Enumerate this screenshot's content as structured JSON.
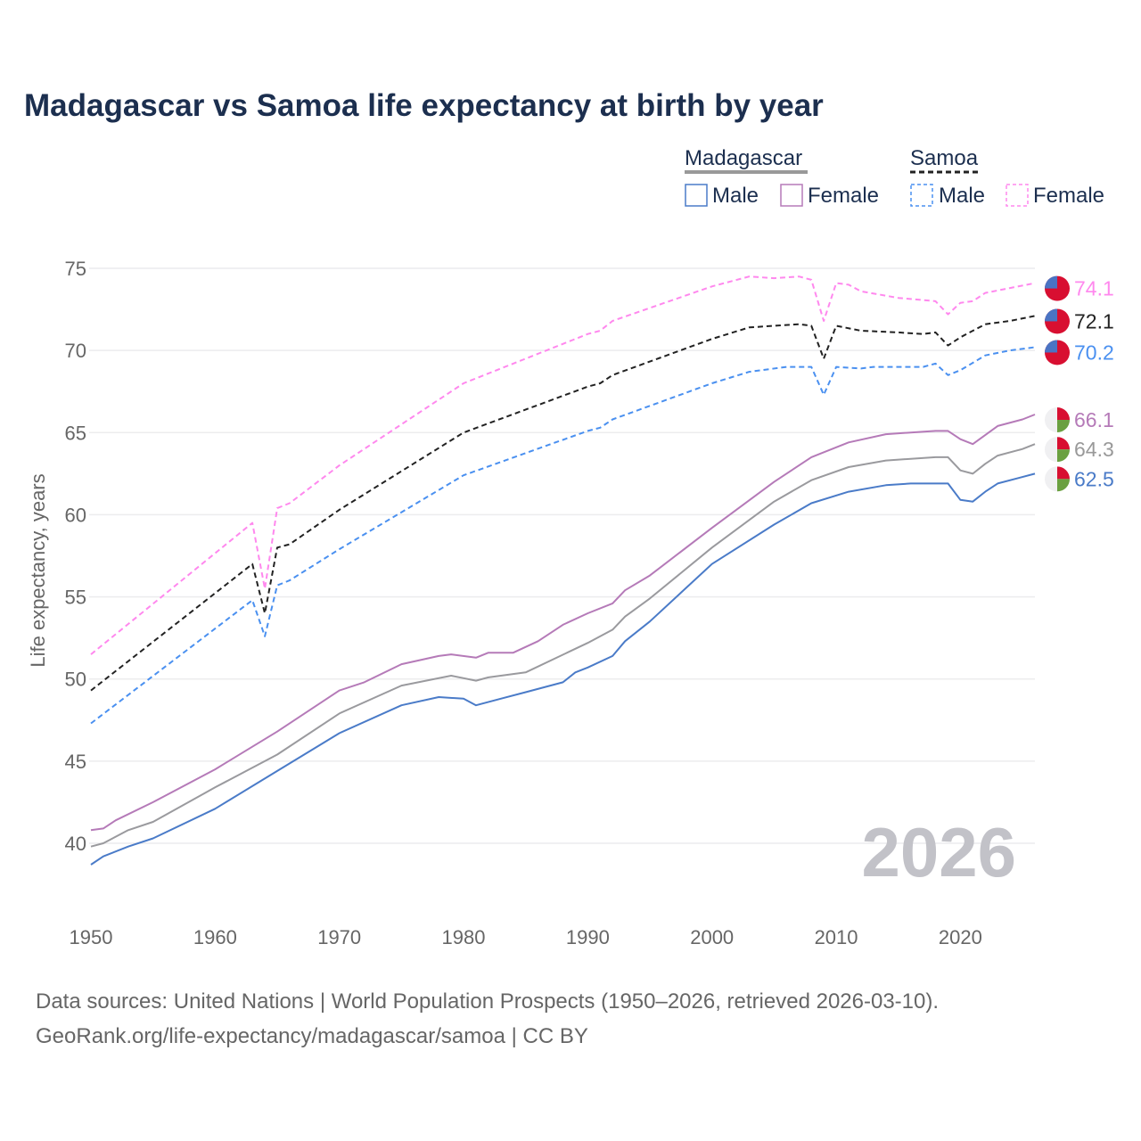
{
  "title": "Madagascar vs Samoa life expectancy at birth by year",
  "year_watermark": "2026",
  "source_line1": "Data sources: United Nations | World Population Prospects (1950–2026, retrieved 2026-03-10).",
  "source_line2": "GeoRank.org/life-expectancy/madagascar/samoa | CC BY",
  "legend": {
    "groups": [
      {
        "label": "Madagascar",
        "items": [
          "Male",
          "Female"
        ]
      },
      {
        "label": "Samoa",
        "items": [
          "Male",
          "Female"
        ]
      }
    ]
  },
  "chart_data": {
    "type": "line",
    "title": "Madagascar vs Samoa life expectancy at birth by year",
    "xlabel": "",
    "ylabel": "Life expectancy, years",
    "xlim": [
      1950,
      2026
    ],
    "ylim": [
      40,
      75
    ],
    "xticks": [
      "1950",
      "1960",
      "1970",
      "1980",
      "1990",
      "2000",
      "2010",
      "2020"
    ],
    "yticks": [
      "40",
      "45",
      "50",
      "55",
      "60",
      "65",
      "70",
      "75"
    ],
    "grid": true,
    "legend_position": "top-right",
    "series": [
      {
        "name": "Samoa Female",
        "country": "Samoa",
        "color": "#ff88ee",
        "dashed": true,
        "end_label": "74.1",
        "points": [
          [
            1950,
            51.5
          ],
          [
            1963,
            59.5
          ],
          [
            1964,
            55.5
          ],
          [
            1965,
            60.4
          ],
          [
            1966,
            60.7
          ],
          [
            1970,
            63.0
          ],
          [
            1980,
            68.0
          ],
          [
            1990,
            71.0
          ],
          [
            1991,
            71.2
          ],
          [
            1992,
            71.8
          ],
          [
            2000,
            73.9
          ],
          [
            2003,
            74.5
          ],
          [
            2005,
            74.4
          ],
          [
            2007,
            74.5
          ],
          [
            2008,
            74.3
          ],
          [
            2009,
            71.8
          ],
          [
            2010,
            74.1
          ],
          [
            2011,
            74.0
          ],
          [
            2012,
            73.6
          ],
          [
            2015,
            73.2
          ],
          [
            2018,
            73.0
          ],
          [
            2019,
            72.2
          ],
          [
            2020,
            72.9
          ],
          [
            2021,
            73.0
          ],
          [
            2022,
            73.5
          ],
          [
            2024,
            73.8
          ],
          [
            2026,
            74.1
          ]
        ]
      },
      {
        "name": "Samoa Total",
        "country": "Samoa",
        "color": "#222222",
        "dashed": true,
        "end_label": "72.1",
        "points": [
          [
            1950,
            49.3
          ],
          [
            1963,
            57.0
          ],
          [
            1964,
            54.0
          ],
          [
            1965,
            58.0
          ],
          [
            1966,
            58.2
          ],
          [
            1970,
            60.3
          ],
          [
            1980,
            65.0
          ],
          [
            1990,
            67.8
          ],
          [
            1991,
            68.0
          ],
          [
            1992,
            68.5
          ],
          [
            2000,
            70.7
          ],
          [
            2003,
            71.4
          ],
          [
            2005,
            71.5
          ],
          [
            2007,
            71.6
          ],
          [
            2008,
            71.5
          ],
          [
            2009,
            69.5
          ],
          [
            2010,
            71.5
          ],
          [
            2012,
            71.2
          ],
          [
            2015,
            71.1
          ],
          [
            2017,
            71.0
          ],
          [
            2018,
            71.1
          ],
          [
            2019,
            70.3
          ],
          [
            2020,
            70.8
          ],
          [
            2022,
            71.6
          ],
          [
            2024,
            71.8
          ],
          [
            2026,
            72.1
          ]
        ]
      },
      {
        "name": "Samoa Male",
        "country": "Samoa",
        "color": "#4a90f0",
        "dashed": true,
        "end_label": "70.2",
        "points": [
          [
            1950,
            47.3
          ],
          [
            1963,
            54.8
          ],
          [
            1964,
            52.6
          ],
          [
            1965,
            55.7
          ],
          [
            1966,
            56.0
          ],
          [
            1970,
            57.9
          ],
          [
            1980,
            62.4
          ],
          [
            1990,
            65.1
          ],
          [
            1991,
            65.3
          ],
          [
            1992,
            65.8
          ],
          [
            2000,
            68.0
          ],
          [
            2003,
            68.7
          ],
          [
            2006,
            69.0
          ],
          [
            2008,
            69.0
          ],
          [
            2009,
            67.3
          ],
          [
            2010,
            69.0
          ],
          [
            2012,
            68.9
          ],
          [
            2013,
            69.0
          ],
          [
            2017,
            69.0
          ],
          [
            2018,
            69.2
          ],
          [
            2019,
            68.5
          ],
          [
            2020,
            68.8
          ],
          [
            2022,
            69.7
          ],
          [
            2024,
            70.0
          ],
          [
            2026,
            70.2
          ]
        ]
      },
      {
        "name": "Madagascar Female",
        "country": "Madagascar",
        "color": "#b57ab8",
        "dashed": false,
        "end_label": "66.1",
        "points": [
          [
            1950,
            40.8
          ],
          [
            1951,
            40.9
          ],
          [
            1952,
            41.4
          ],
          [
            1955,
            42.5
          ],
          [
            1960,
            44.5
          ],
          [
            1965,
            46.8
          ],
          [
            1970,
            49.3
          ],
          [
            1972,
            49.8
          ],
          [
            1975,
            50.9
          ],
          [
            1978,
            51.4
          ],
          [
            1979,
            51.5
          ],
          [
            1981,
            51.3
          ],
          [
            1982,
            51.6
          ],
          [
            1984,
            51.6
          ],
          [
            1986,
            52.3
          ],
          [
            1988,
            53.3
          ],
          [
            1990,
            54.0
          ],
          [
            1992,
            54.6
          ],
          [
            1993,
            55.4
          ],
          [
            1995,
            56.3
          ],
          [
            2000,
            59.2
          ],
          [
            2005,
            62.0
          ],
          [
            2008,
            63.5
          ],
          [
            2011,
            64.4
          ],
          [
            2014,
            64.9
          ],
          [
            2018,
            65.1
          ],
          [
            2019,
            65.1
          ],
          [
            2020,
            64.6
          ],
          [
            2021,
            64.3
          ],
          [
            2023,
            65.4
          ],
          [
            2025,
            65.8
          ],
          [
            2026,
            66.1
          ]
        ]
      },
      {
        "name": "Madagascar Total",
        "country": "Madagascar",
        "color": "#9a9a9e",
        "dashed": false,
        "end_label": "64.3",
        "points": [
          [
            1950,
            39.8
          ],
          [
            1951,
            40.0
          ],
          [
            1953,
            40.8
          ],
          [
            1955,
            41.3
          ],
          [
            1960,
            43.4
          ],
          [
            1965,
            45.4
          ],
          [
            1970,
            47.9
          ],
          [
            1975,
            49.6
          ],
          [
            1979,
            50.2
          ],
          [
            1981,
            49.9
          ],
          [
            1982,
            50.1
          ],
          [
            1985,
            50.4
          ],
          [
            1990,
            52.2
          ],
          [
            1992,
            53.0
          ],
          [
            1993,
            53.8
          ],
          [
            1995,
            54.9
          ],
          [
            2000,
            58.0
          ],
          [
            2005,
            60.8
          ],
          [
            2008,
            62.1
          ],
          [
            2011,
            62.9
          ],
          [
            2014,
            63.3
          ],
          [
            2018,
            63.5
          ],
          [
            2019,
            63.5
          ],
          [
            2020,
            62.7
          ],
          [
            2021,
            62.5
          ],
          [
            2022,
            63.1
          ],
          [
            2023,
            63.6
          ],
          [
            2025,
            64.0
          ],
          [
            2026,
            64.3
          ]
        ]
      },
      {
        "name": "Madagascar Male",
        "country": "Madagascar",
        "color": "#4a7bc8",
        "dashed": false,
        "end_label": "62.5",
        "points": [
          [
            1950,
            38.7
          ],
          [
            1951,
            39.2
          ],
          [
            1953,
            39.8
          ],
          [
            1955,
            40.3
          ],
          [
            1960,
            42.1
          ],
          [
            1965,
            44.4
          ],
          [
            1970,
            46.7
          ],
          [
            1975,
            48.4
          ],
          [
            1978,
            48.9
          ],
          [
            1980,
            48.8
          ],
          [
            1981,
            48.4
          ],
          [
            1983,
            48.8
          ],
          [
            1985,
            49.2
          ],
          [
            1988,
            49.8
          ],
          [
            1989,
            50.4
          ],
          [
            1990,
            50.7
          ],
          [
            1992,
            51.4
          ],
          [
            1993,
            52.3
          ],
          [
            1995,
            53.5
          ],
          [
            2000,
            57.0
          ],
          [
            2005,
            59.4
          ],
          [
            2008,
            60.7
          ],
          [
            2011,
            61.4
          ],
          [
            2014,
            61.8
          ],
          [
            2016,
            61.9
          ],
          [
            2019,
            61.9
          ],
          [
            2020,
            60.9
          ],
          [
            2021,
            60.8
          ],
          [
            2022,
            61.4
          ],
          [
            2023,
            61.9
          ],
          [
            2026,
            62.5
          ]
        ]
      }
    ]
  }
}
